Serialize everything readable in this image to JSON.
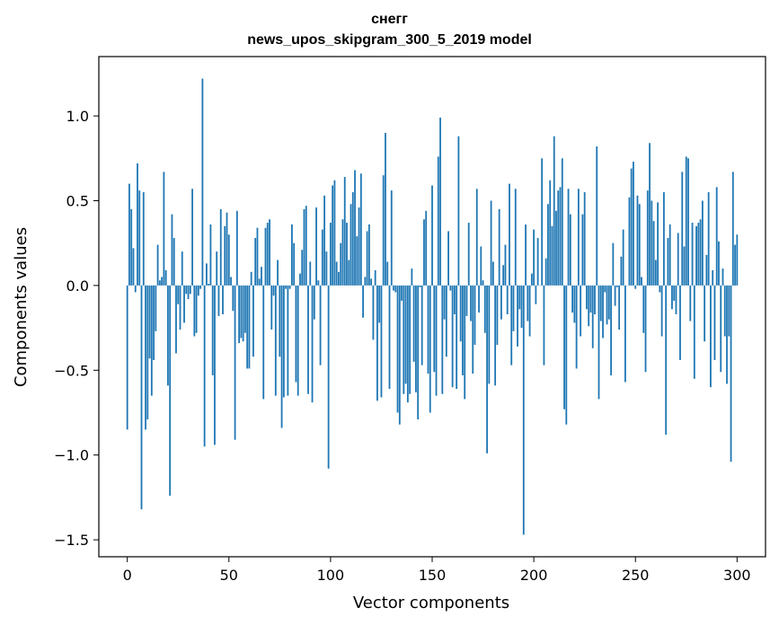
{
  "chart_data": {
    "type": "bar",
    "title": "снегг",
    "subtitle": "news_upos_skipgram_300_5_2019 model",
    "xlabel": "Vector components",
    "ylabel": "Components values",
    "xlim": [
      -14,
      314
    ],
    "ylim": [
      -1.6,
      1.35
    ],
    "x_ticks": [
      0,
      50,
      100,
      150,
      200,
      250,
      300
    ],
    "x_tick_labels": [
      "0",
      "50",
      "100",
      "150",
      "200",
      "250",
      "300"
    ],
    "y_ticks": [
      -1.5,
      -1.0,
      -0.5,
      0.0,
      0.5,
      1.0
    ],
    "y_tick_labels": [
      "−1.5",
      "−1.0",
      "−0.5",
      "0.0",
      "0.5",
      "1.0"
    ],
    "bar_color": "#1f77b4",
    "grid": false,
    "values": [
      -0.85,
      0.6,
      0.45,
      0.22,
      -0.04,
      0.72,
      0.56,
      -1.32,
      0.55,
      -0.85,
      -0.79,
      -0.43,
      -0.65,
      -0.44,
      -0.27,
      0.24,
      0.03,
      0.05,
      0.67,
      0.09,
      -0.59,
      -1.24,
      0.42,
      0.28,
      -0.4,
      -0.11,
      -0.26,
      0.2,
      -0.22,
      -0.05,
      -0.08,
      -0.05,
      0.57,
      -0.3,
      -0.28,
      -0.06,
      -0.02,
      1.22,
      -0.95,
      0.13,
      0.01,
      0.36,
      -0.53,
      -0.94,
      0.2,
      -0.18,
      0.45,
      -0.17,
      0.35,
      0.43,
      0.3,
      0.05,
      -0.15,
      -0.91,
      0.44,
      -0.34,
      -0.31,
      -0.33,
      -0.28,
      -0.49,
      -0.49,
      0.08,
      -0.42,
      0.28,
      0.34,
      0.04,
      0.11,
      -0.67,
      0.34,
      0.37,
      0.39,
      -0.26,
      -0.06,
      -0.65,
      0.15,
      -0.42,
      -0.84,
      -0.66,
      -0.02,
      -0.65,
      -0.02,
      0.36,
      0.25,
      -0.57,
      -0.65,
      0.07,
      0.21,
      0.45,
      0.47,
      -0.64,
      0.14,
      -0.69,
      -0.2,
      0.46,
      0.03,
      -0.47,
      0.33,
      0.53,
      0.2,
      -1.08,
      0.37,
      0.59,
      0.62,
      0.14,
      0.08,
      0.25,
      0.39,
      0.64,
      0.37,
      0.15,
      0.48,
      0.55,
      0.68,
      0.29,
      0.46,
      0.66,
      -0.19,
      0.05,
      0.32,
      0.36,
      0.04,
      -0.32,
      0.09,
      -0.68,
      -0.22,
      -0.66,
      0.65,
      0.9,
      0.14,
      -0.61,
      0.56,
      -0.03,
      -0.04,
      -0.75,
      -0.82,
      -0.09,
      -0.64,
      -0.58,
      -0.69,
      -0.64,
      0.1,
      -0.45,
      -0.63,
      -0.79,
      -0.01,
      -0.47,
      0.39,
      0.44,
      -0.52,
      -0.75,
      0.59,
      -0.51,
      -0.65,
      0.76,
      0.99,
      -0.64,
      -0.2,
      -0.42,
      0.32,
      -0.03,
      -0.6,
      -0.17,
      -0.61,
      0.88,
      -0.33,
      -0.53,
      -0.67,
      -0.18,
      0.37,
      -0.21,
      -0.52,
      -0.35,
      0.57,
      -0.16,
      0.23,
      0.03,
      -0.28,
      -0.99,
      -0.58,
      0.5,
      0.14,
      -0.59,
      -0.35,
      0.45,
      -0.2,
      0.12,
      0.24,
      -0.17,
      0.6,
      -0.47,
      -0.27,
      0.57,
      -0.36,
      -0.14,
      -0.25,
      -1.47,
      0.36,
      -0.21,
      -0.3,
      0.07,
      0.33,
      -0.11,
      0.28,
      0.0,
      0.75,
      -0.47,
      0.16,
      0.48,
      0.62,
      0.35,
      0.88,
      0.44,
      0.56,
      0.58,
      0.75,
      -0.73,
      -0.82,
      0.57,
      0.42,
      -0.16,
      -0.22,
      -0.49,
      0.57,
      -0.3,
      0.42,
      0.55,
      -0.14,
      -0.24,
      -0.16,
      -0.37,
      -0.17,
      0.82,
      -0.67,
      -0.21,
      -0.31,
      -0.04,
      -0.23,
      -0.2,
      -0.53,
      0.25,
      -0.12,
      -0.01,
      -0.26,
      0.17,
      0.33,
      -0.57,
      0.0,
      0.52,
      0.69,
      0.73,
      -0.02,
      0.53,
      0.48,
      0.05,
      -0.28,
      -0.51,
      0.56,
      0.84,
      0.5,
      0.38,
      0.15,
      0.49,
      -0.04,
      -0.3,
      0.55,
      -0.88,
      0.28,
      0.36,
      -0.14,
      -0.09,
      -0.17,
      0.31,
      -0.44,
      0.67,
      0.23,
      0.76,
      0.75,
      -0.21,
      0.37,
      -0.55,
      0.35,
      0.37,
      0.39,
      0.5,
      -0.33,
      0.18,
      0.55,
      -0.6,
      0.09,
      -0.44,
      0.58,
      0.26,
      -0.51,
      0.1,
      -0.3,
      -0.58,
      -0.3,
      -1.04,
      0.67,
      0.24,
      0.3
    ]
  }
}
